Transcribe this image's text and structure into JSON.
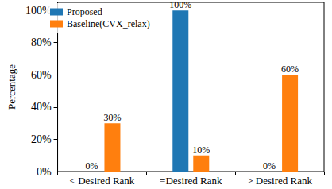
{
  "chart_data": {
    "type": "bar",
    "y_label": "Percentage",
    "categories": [
      "< Desired Rank",
      "=Desired Rank",
      "> Desired Rank"
    ],
    "series": [
      {
        "name": "Proposed",
        "color": "#1f77b4",
        "values": [
          0,
          100,
          0
        ],
        "value_labels": [
          "0%",
          "100%",
          "0%"
        ]
      },
      {
        "name": "Baseline(CVX_relax)",
        "color": "#ff7f0e",
        "values": [
          30,
          10,
          60
        ],
        "value_labels": [
          "30%",
          "10%",
          "60%"
        ]
      }
    ],
    "ylim": [
      0,
      105
    ],
    "yticks": [
      {
        "value": 0,
        "label": "0%"
      },
      {
        "value": 20,
        "label": "20%"
      },
      {
        "value": 40,
        "label": "40%"
      },
      {
        "value": 60,
        "label": "60%"
      },
      {
        "value": 80,
        "label": "80%"
      },
      {
        "value": 100,
        "label": "100%"
      }
    ],
    "grid": false,
    "legend": "upper left",
    "data_labels": true
  }
}
